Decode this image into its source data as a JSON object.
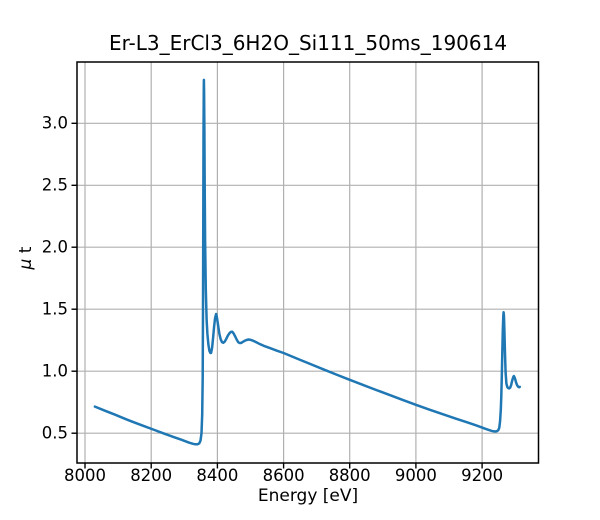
{
  "chart_data": {
    "type": "line",
    "title": "Er-L3_ErCl3_6H2O_Si111_50ms_190614",
    "xlabel": "Energy [eV]",
    "ylabel": "μ t",
    "ylabel_parts": {
      "mu": "μ",
      "rest": " t"
    },
    "xlim": [
      7975.8,
      9370.4
    ],
    "ylim": [
      0.26,
      3.494
    ],
    "xticks": [
      8000,
      8200,
      8400,
      8600,
      8800,
      9000,
      9200
    ],
    "xtick_labels": [
      "8000",
      "8200",
      "8400",
      "8600",
      "8800",
      "9000",
      "9200"
    ],
    "yticks": [
      0.5,
      1.0,
      1.5,
      2.0,
      2.5,
      3.0
    ],
    "ytick_labels": [
      "0.5",
      "1.0",
      "1.5",
      "2.0",
      "2.5",
      "3.0"
    ],
    "grid": true,
    "legend": false,
    "line_color": "#1f77b4",
    "grid_color": "#b0b0b0",
    "axis_color": "#000000",
    "x": [
      8030,
      8060,
      8090,
      8120,
      8150,
      8180,
      8210,
      8240,
      8270,
      8290,
      8305,
      8315,
      8325,
      8333,
      8340,
      8345,
      8349,
      8352,
      8354,
      8355.5,
      8356.5,
      8357.5,
      8358.2,
      8359,
      8359.4,
      8360,
      8360.8,
      8361.8,
      8363,
      8365,
      8367.5,
      8370,
      8373,
      8376,
      8379,
      8381,
      8384,
      8387,
      8390,
      8393,
      8396,
      8399,
      8402,
      8406,
      8410,
      8414,
      8418,
      8422,
      8427,
      8432,
      8437,
      8441,
      8445,
      8449,
      8454,
      8459,
      8463,
      8467,
      8471,
      8476,
      8482,
      8488,
      8494,
      8501,
      8508,
      8516,
      8526,
      8540,
      8560,
      8580,
      8600,
      8640,
      8680,
      8720,
      8760,
      8800,
      8840,
      8880,
      8920,
      8960,
      9000,
      9040,
      9080,
      9120,
      9150,
      9175,
      9195,
      9210,
      9220,
      9228,
      9234,
      9240,
      9245,
      9249,
      9252,
      9254.5,
      9256.5,
      9258,
      9259.5,
      9261,
      9262.5,
      9264,
      9265,
      9266,
      9267.5,
      9269,
      9271,
      9273.5,
      9276,
      9279,
      9282,
      9285,
      9288,
      9291,
      9294,
      9296,
      9298,
      9300.5,
      9303,
      9306,
      9309,
      9312,
      9314
    ],
    "y": [
      0.715,
      0.682,
      0.65,
      0.617,
      0.586,
      0.556,
      0.526,
      0.496,
      0.467,
      0.449,
      0.434,
      0.424,
      0.416,
      0.411,
      0.411,
      0.418,
      0.44,
      0.5,
      0.65,
      0.95,
      1.5,
      2.3,
      2.9,
      3.3,
      3.35,
      3.25,
      2.95,
      2.5,
      2.06,
      1.66,
      1.42,
      1.3,
      1.215,
      1.165,
      1.147,
      1.148,
      1.19,
      1.27,
      1.36,
      1.43,
      1.462,
      1.43,
      1.375,
      1.3,
      1.258,
      1.235,
      1.229,
      1.238,
      1.262,
      1.29,
      1.308,
      1.317,
      1.318,
      1.305,
      1.28,
      1.252,
      1.235,
      1.228,
      1.228,
      1.235,
      1.245,
      1.252,
      1.256,
      1.253,
      1.246,
      1.236,
      1.222,
      1.205,
      1.186,
      1.166,
      1.147,
      1.103,
      1.059,
      1.016,
      0.973,
      0.931,
      0.89,
      0.849,
      0.809,
      0.769,
      0.729,
      0.691,
      0.654,
      0.618,
      0.592,
      0.57,
      0.551,
      0.536,
      0.527,
      0.52,
      0.516,
      0.514,
      0.517,
      0.525,
      0.545,
      0.6,
      0.69,
      0.8,
      0.96,
      1.15,
      1.33,
      1.445,
      1.476,
      1.44,
      1.33,
      1.17,
      0.99,
      0.9,
      0.873,
      0.864,
      0.862,
      0.868,
      0.89,
      0.925,
      0.952,
      0.961,
      0.952,
      0.93,
      0.906,
      0.886,
      0.875,
      0.871,
      0.874
    ]
  }
}
